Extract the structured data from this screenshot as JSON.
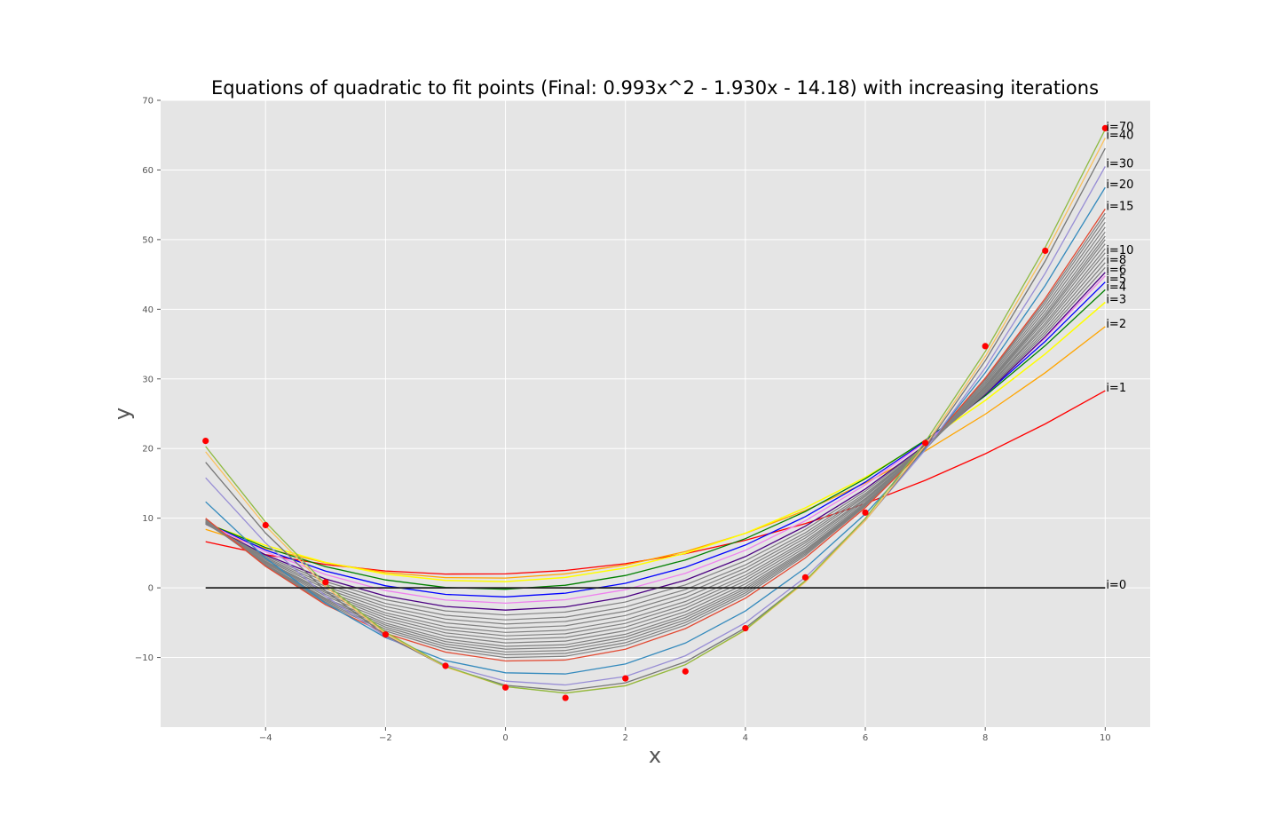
{
  "chart_data": {
    "type": "line",
    "title": "Equations of quadratic to fit points (Final: 0.993x^2 - 1.930x - 14.18) with increasing iterations",
    "xlabel": "x",
    "ylabel": "y",
    "xlim": [
      -5.75,
      10.75
    ],
    "ylim": [
      -20,
      70
    ],
    "xticks": [
      -4,
      -2,
      0,
      2,
      4,
      6,
      8,
      10
    ],
    "xtick_labels": [
      "−4",
      "−2",
      "0",
      "2",
      "4",
      "6",
      "8",
      "10"
    ],
    "yticks": [
      -10,
      0,
      10,
      20,
      30,
      40,
      50,
      60,
      70
    ],
    "ytick_labels": [
      "−10",
      "0",
      "10",
      "20",
      "30",
      "40",
      "50",
      "60",
      "70"
    ],
    "grid": true,
    "background": "#e5e5e5",
    "grid_color": "#ffffff",
    "x": [
      -5,
      -4,
      -3,
      -2,
      -1,
      0,
      1,
      2,
      3,
      4,
      5,
      6,
      7,
      8,
      9,
      10
    ],
    "points": {
      "color": "#ff0000",
      "y": [
        21.1,
        9.0,
        0.8,
        -6.7,
        -11.2,
        -14.3,
        -15.8,
        -13.0,
        -12.0,
        -5.8,
        1.5,
        10.8,
        20.8,
        34.7,
        48.4,
        66.0
      ]
    },
    "curves": [
      {
        "label": "i=0",
        "a": 0.0,
        "b": 0.0,
        "c": 0.0,
        "color": "#222222",
        "width": 1.8
      },
      {
        "label": "i=1",
        "a": 0.237,
        "b": 0.26,
        "c": 2.0,
        "color": "#ff0000",
        "width": 1.3
      },
      {
        "label": "i=2",
        "a": 0.334,
        "b": 0.27,
        "c": 1.4,
        "color": "#ffa500",
        "width": 1.3
      },
      {
        "label": "i=3",
        "a": 0.379,
        "b": 0.22,
        "c": 0.9,
        "color": "#ffff00",
        "width": 1.5
      },
      {
        "label": "i=4",
        "a": 0.414,
        "b": 0.16,
        "c": -0.2,
        "color": "#008000",
        "width": 1.3
      },
      {
        "label": "i=5",
        "a": 0.443,
        "b": 0.09,
        "c": -1.3,
        "color": "#0000ff",
        "width": 1.3
      },
      {
        "label": null,
        "a": 0.467,
        "b": 0.03,
        "c": -2.2,
        "color": "#ee82ee",
        "width": 1.3
      },
      {
        "label": "i=6",
        "a": 0.488,
        "b": -0.03,
        "c": -3.2,
        "color": "#4b0082",
        "width": 1.3
      },
      {
        "label": null,
        "a": 0.507,
        "b": -0.08,
        "c": -3.9,
        "color": "#808080",
        "width": 1.2
      },
      {
        "label": "i=8",
        "a": 0.526,
        "b": -0.13,
        "c": -4.6,
        "color": "#808080",
        "width": 1.2
      },
      {
        "label": null,
        "a": 0.543,
        "b": -0.17,
        "c": -5.2,
        "color": "#808080",
        "width": 1.2
      },
      {
        "label": "i=10",
        "a": 0.56,
        "b": -0.21,
        "c": -5.8,
        "color": "#808080",
        "width": 1.2
      },
      {
        "label": null,
        "a": 0.576,
        "b": -0.25,
        "c": -6.4,
        "color": "#808080",
        "width": 1.2
      },
      {
        "label": null,
        "a": 0.592,
        "b": -0.29,
        "c": -6.9,
        "color": "#808080",
        "width": 1.2
      },
      {
        "label": null,
        "a": 0.607,
        "b": -0.33,
        "c": -7.4,
        "color": "#808080",
        "width": 1.2
      },
      {
        "label": null,
        "a": 0.621,
        "b": -0.37,
        "c": -7.9,
        "color": "#808080",
        "width": 1.2
      },
      {
        "label": null,
        "a": 0.635,
        "b": -0.4,
        "c": -8.4,
        "color": "#808080",
        "width": 1.2
      },
      {
        "label": null,
        "a": 0.649,
        "b": -0.43,
        "c": -8.8,
        "color": "#808080",
        "width": 1.2
      },
      {
        "label": null,
        "a": 0.663,
        "b": -0.46,
        "c": -9.2,
        "color": "#808080",
        "width": 1.2
      },
      {
        "label": null,
        "a": 0.677,
        "b": -0.49,
        "c": -9.6,
        "color": "#808080",
        "width": 1.2
      },
      {
        "label": null,
        "a": 0.69,
        "b": -0.52,
        "c": -10.0,
        "color": "#808080",
        "width": 1.2
      },
      {
        "label": "i=15",
        "a": 0.706,
        "b": -0.57,
        "c": -10.5,
        "color": "#e24a33",
        "width": 1.3
      },
      {
        "label": "i=20",
        "a": 0.792,
        "b": -0.95,
        "c": -12.2,
        "color": "#348abd",
        "width": 1.3
      },
      {
        "label": "i=30",
        "a": 0.882,
        "b": -1.43,
        "c": -13.4,
        "color": "#988ed5",
        "width": 1.3
      },
      {
        "label": null,
        "a": 0.941,
        "b": -1.7,
        "c": -14.0,
        "color": "#777777",
        "width": 1.3
      },
      {
        "label": "i=40",
        "a": 0.975,
        "b": -1.87,
        "c": -14.2,
        "color": "#fbc15e",
        "width": 1.3
      },
      {
        "label": "i=70",
        "a": 0.993,
        "b": -1.93,
        "c": -14.18,
        "color": "#8eba42",
        "width": 1.3
      }
    ]
  }
}
